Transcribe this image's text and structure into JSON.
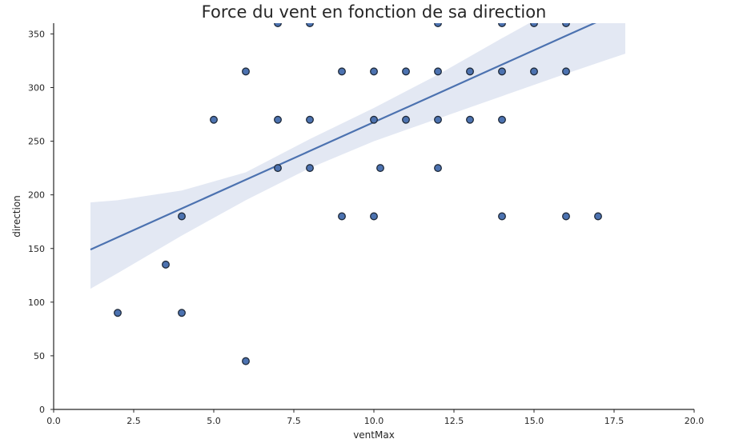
{
  "chart_data": {
    "type": "scatter",
    "title": "Force du vent en fonction de sa direction",
    "xlabel": "ventMax",
    "ylabel": "direction",
    "xlim": [
      0,
      20
    ],
    "ylim": [
      0,
      360
    ],
    "xticks": [
      "0.0",
      "2.5",
      "5.0",
      "7.5",
      "10.0",
      "12.5",
      "15.0",
      "17.5",
      "20.0"
    ],
    "yticks": [
      "0",
      "50",
      "100",
      "150",
      "200",
      "250",
      "300",
      "350"
    ],
    "grid": false,
    "colors": {
      "point": "#4c72b0",
      "line": "#4c72b0",
      "band": "#e3e8f3"
    },
    "points": [
      {
        "x": 7,
        "y": 360
      },
      {
        "x": 8,
        "y": 360
      },
      {
        "x": 12,
        "y": 360
      },
      {
        "x": 14,
        "y": 360
      },
      {
        "x": 15,
        "y": 360
      },
      {
        "x": 16,
        "y": 360
      },
      {
        "x": 6,
        "y": 315
      },
      {
        "x": 9,
        "y": 315
      },
      {
        "x": 10,
        "y": 315
      },
      {
        "x": 11,
        "y": 315
      },
      {
        "x": 12,
        "y": 315
      },
      {
        "x": 13,
        "y": 315
      },
      {
        "x": 14,
        "y": 315
      },
      {
        "x": 15,
        "y": 315
      },
      {
        "x": 16,
        "y": 315
      },
      {
        "x": 5,
        "y": 270
      },
      {
        "x": 7,
        "y": 270
      },
      {
        "x": 8,
        "y": 270
      },
      {
        "x": 10,
        "y": 270
      },
      {
        "x": 11,
        "y": 270
      },
      {
        "x": 12,
        "y": 270
      },
      {
        "x": 13,
        "y": 270
      },
      {
        "x": 14,
        "y": 270
      },
      {
        "x": 7,
        "y": 225
      },
      {
        "x": 8,
        "y": 225
      },
      {
        "x": 10.2,
        "y": 225
      },
      {
        "x": 12,
        "y": 225
      },
      {
        "x": 4,
        "y": 180
      },
      {
        "x": 9,
        "y": 180
      },
      {
        "x": 10,
        "y": 180
      },
      {
        "x": 14,
        "y": 180
      },
      {
        "x": 16,
        "y": 180
      },
      {
        "x": 17,
        "y": 180
      },
      {
        "x": 3.5,
        "y": 135
      },
      {
        "x": 2,
        "y": 90
      },
      {
        "x": 4,
        "y": 90
      },
      {
        "x": 6,
        "y": 45
      }
    ],
    "regression": {
      "x": [
        1.15,
        2,
        4,
        6,
        8,
        10,
        12,
        14,
        16,
        17.85
      ],
      "y": [
        149,
        160.4,
        187.2,
        214.1,
        240.9,
        267.7,
        294.5,
        321.4,
        348.2,
        373
      ]
    },
    "confidence_band": {
      "x": [
        1.15,
        2,
        4,
        6,
        8,
        10,
        12,
        14,
        16,
        17.85
      ],
      "lower": [
        112.5,
        127,
        162,
        195,
        225,
        250,
        271,
        292,
        313,
        331.6
      ],
      "upper": [
        193,
        195,
        204,
        221,
        252,
        281,
        312,
        346,
        379,
        412
      ]
    }
  }
}
